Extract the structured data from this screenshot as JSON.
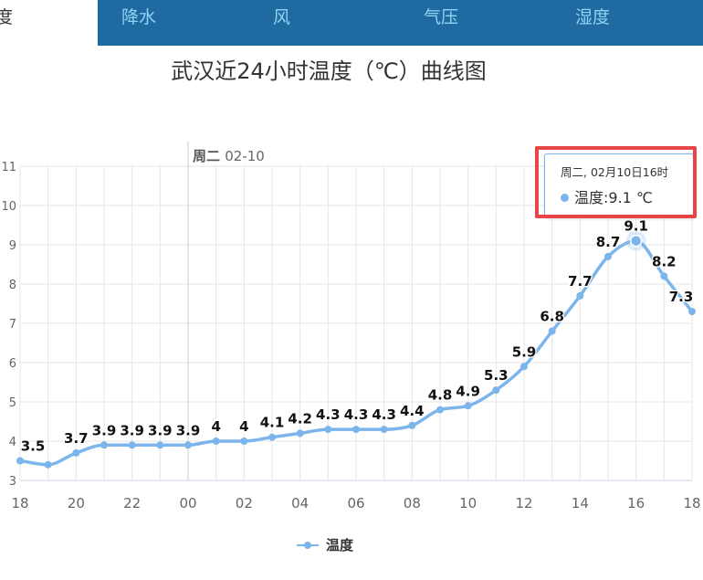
{
  "tabs": [
    {
      "label": "度",
      "active": true
    },
    {
      "label": "降水",
      "active": false
    },
    {
      "label": "风",
      "active": false
    },
    {
      "label": "气压",
      "active": false
    },
    {
      "label": "湿度",
      "active": false
    }
  ],
  "chart_data": {
    "type": "line",
    "title": "武汉近24小时温度（℃）曲线图",
    "x_ticks": [
      "18",
      "20",
      "22",
      "00",
      "02",
      "04",
      "06",
      "08",
      "10",
      "12",
      "14",
      "16",
      "18"
    ],
    "ylim": [
      3,
      11
    ],
    "y_ticks": [
      3,
      4,
      5,
      6,
      7,
      8,
      9,
      10,
      11
    ],
    "date_band_label": "02-10",
    "date_band_weekday": "周二",
    "series": [
      {
        "name": "温度",
        "color": "#7cb5ec",
        "x_hours": [
          "18",
          "19",
          "20",
          "21",
          "22",
          "23",
          "00",
          "01",
          "02",
          "03",
          "04",
          "05",
          "06",
          "07",
          "08",
          "09",
          "10",
          "11",
          "12",
          "13",
          "14",
          "15",
          "16",
          "17",
          "18"
        ],
        "values": [
          3.5,
          3.4,
          3.7,
          3.9,
          3.9,
          3.9,
          3.9,
          4.0,
          4.0,
          4.1,
          4.2,
          4.3,
          4.3,
          4.3,
          4.4,
          4.8,
          4.9,
          5.3,
          5.9,
          6.8,
          7.7,
          8.7,
          9.1,
          8.2,
          7.3
        ],
        "data_labels": [
          "3.5",
          "",
          "3.7",
          "3.9",
          "3.9",
          "3.9",
          "3.9",
          "4",
          "4",
          "4.1",
          "4.2",
          "4.3",
          "4.3",
          "4.3",
          "4.4",
          "4.8",
          "4.9",
          "5.3",
          "5.9",
          "6.8",
          "7.7",
          "8.7",
          "9.1",
          "8.2",
          "7.3"
        ]
      }
    ],
    "highlighted_index": 22,
    "grid": true,
    "legend_position": "bottom-center"
  },
  "tooltip": {
    "header": "周二, 02月10日16时",
    "series_label": "温度",
    "value_text": "9.1 ℃"
  },
  "legend": {
    "label": "温度"
  }
}
